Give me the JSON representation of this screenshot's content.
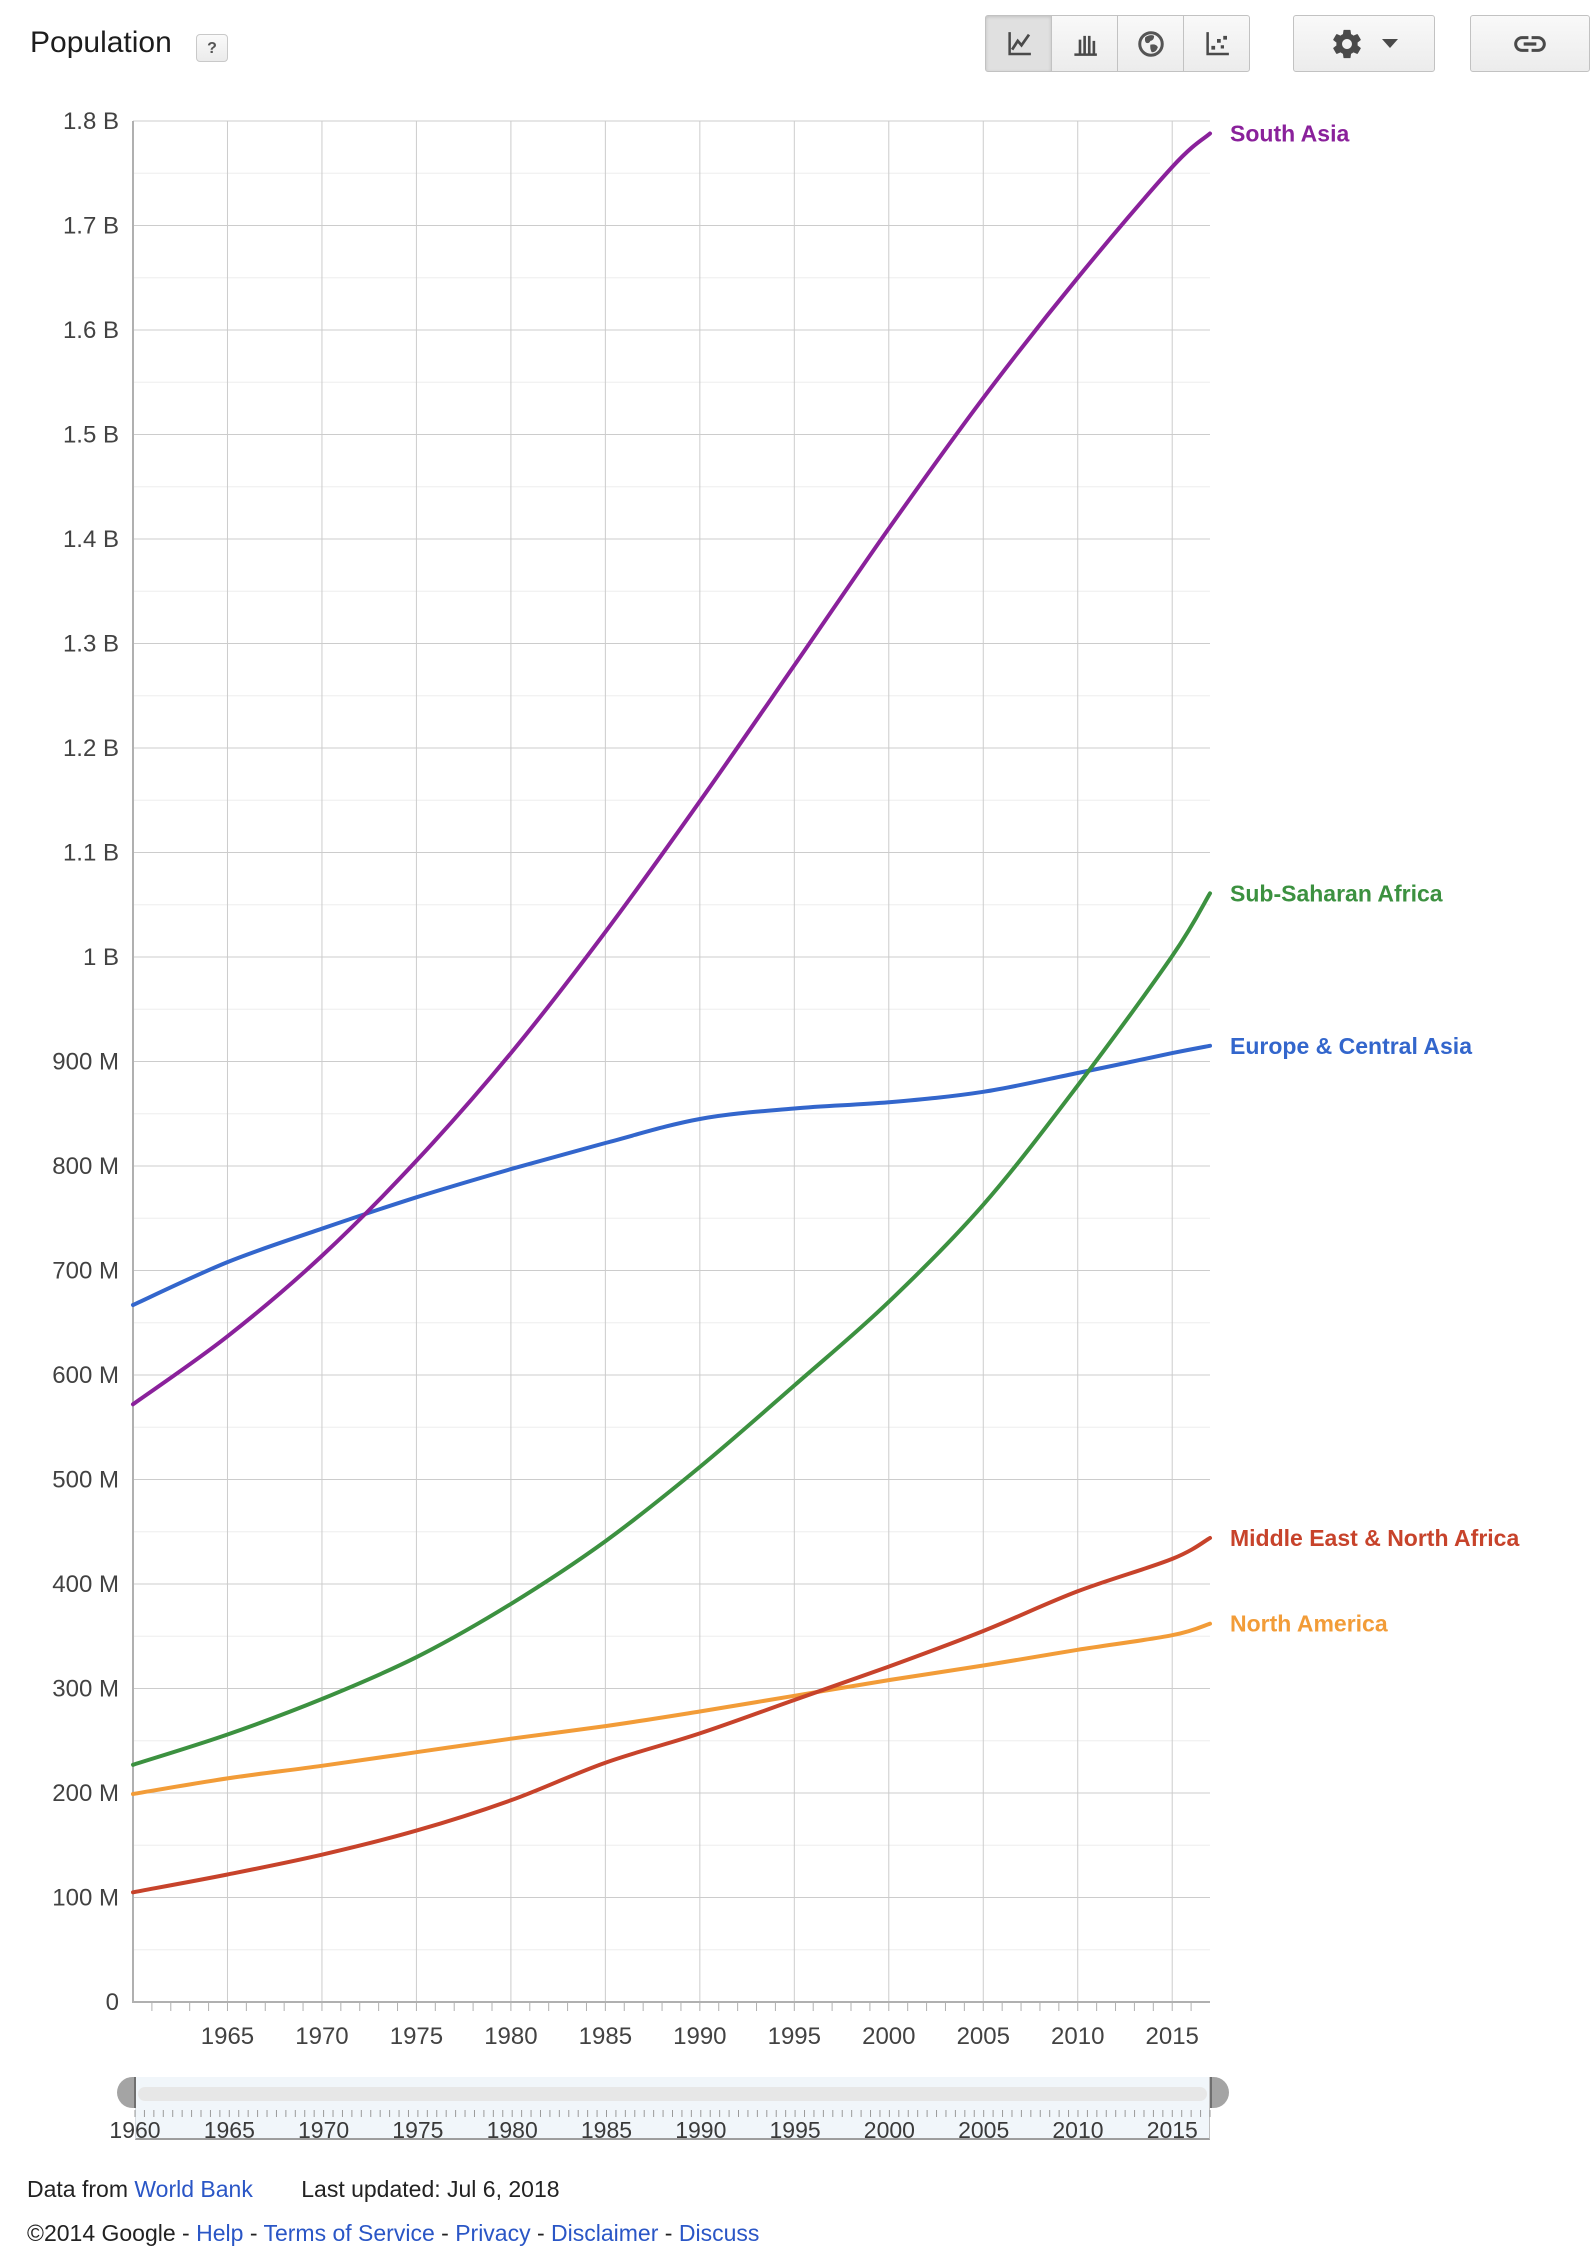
{
  "header": {
    "title": "Population",
    "help_label": "?"
  },
  "toolbar": {
    "chart_type_buttons": [
      {
        "label": "line chart",
        "icon": "line-chart-icon",
        "selected": true
      },
      {
        "label": "bar chart",
        "icon": "bar-chart-icon",
        "selected": false
      },
      {
        "label": "map",
        "icon": "globe-icon",
        "selected": false
      },
      {
        "label": "scatter chart",
        "icon": "scatter-chart-icon",
        "selected": false
      }
    ],
    "settings_button": {
      "icon": "gear-icon",
      "has_dropdown": true
    },
    "share_link_button": {
      "icon": "link-icon"
    }
  },
  "chart_data": {
    "type": "line",
    "title": "Population",
    "unit": "people (values in millions)",
    "x": [
      1960,
      1965,
      1970,
      1975,
      1980,
      1985,
      1990,
      1995,
      2000,
      2005,
      2010,
      2015,
      2017
    ],
    "series": [
      {
        "name": "South Asia",
        "color": "#8a219b",
        "values": [
          572,
          637,
          714,
          805,
          908,
          1024,
          1149,
          1279,
          1410,
          1535,
          1650,
          1756,
          1788
        ]
      },
      {
        "name": "Sub-Saharan Africa",
        "color": "#3c9140",
        "values": [
          227,
          256,
          290,
          330,
          381,
          441,
          512,
          590,
          670,
          763,
          877,
          1001,
          1061
        ]
      },
      {
        "name": "Europe & Central Asia",
        "color": "#3366cc",
        "values": [
          667,
          708,
          740,
          770,
          797,
          822,
          845,
          855,
          861,
          871,
          889,
          908,
          915
        ]
      },
      {
        "name": "Middle East & North Africa",
        "color": "#c7432b",
        "values": [
          105,
          122,
          141,
          164,
          193,
          229,
          257,
          289,
          321,
          355,
          393,
          424,
          444
        ]
      },
      {
        "name": "North America",
        "color": "#f29c38",
        "values": [
          199,
          214,
          226,
          239,
          252,
          264,
          278,
          293,
          308,
          322,
          337,
          351,
          362
        ]
      }
    ],
    "xlim": [
      1960,
      2017
    ],
    "ylim_millions": [
      0,
      1800
    ],
    "y_ticks": [
      {
        "v": 0,
        "label": "0"
      },
      {
        "v": 100,
        "label": "100 M"
      },
      {
        "v": 200,
        "label": "200 M"
      },
      {
        "v": 300,
        "label": "300 M"
      },
      {
        "v": 400,
        "label": "400 M"
      },
      {
        "v": 500,
        "label": "500 M"
      },
      {
        "v": 600,
        "label": "600 M"
      },
      {
        "v": 700,
        "label": "700 M"
      },
      {
        "v": 800,
        "label": "800 M"
      },
      {
        "v": 900,
        "label": "900 M"
      },
      {
        "v": 1000,
        "label": "1 B"
      },
      {
        "v": 1100,
        "label": "1.1 B"
      },
      {
        "v": 1200,
        "label": "1.2 B"
      },
      {
        "v": 1300,
        "label": "1.3 B"
      },
      {
        "v": 1400,
        "label": "1.4 B"
      },
      {
        "v": 1500,
        "label": "1.5 B"
      },
      {
        "v": 1600,
        "label": "1.6 B"
      },
      {
        "v": 1700,
        "label": "1.7 B"
      },
      {
        "v": 1800,
        "label": "1.8 B"
      }
    ],
    "x_tick_years": [
      1965,
      1970,
      1975,
      1980,
      1985,
      1990,
      1995,
      2000,
      2005,
      2010,
      2015
    ],
    "grid": true,
    "legend_position": "right-of-line-ends",
    "colors": {
      "grid_major": "#cccccc",
      "grid_minor": "#ededed",
      "axis": "#b0b0b0",
      "axis_text": "#424242"
    }
  },
  "slider": {
    "range_start": 1960,
    "range_end": 2017,
    "tick_labels": [
      "1960",
      "1965",
      "1970",
      "1975",
      "1980",
      "1985",
      "1990",
      "1995",
      "2000",
      "2005",
      "2010",
      "2015"
    ],
    "left_handle_year": 1960,
    "right_handle_year": 2017
  },
  "footer": {
    "data_from_prefix": "Data from",
    "source_link": "World Bank",
    "last_updated": "Last updated: Jul 6, 2018",
    "copyright": "©2014 Google",
    "separator": "-",
    "footer_links": [
      "Help",
      "Terms of Service",
      "Privacy",
      "Disclaimer",
      "Discuss"
    ]
  }
}
